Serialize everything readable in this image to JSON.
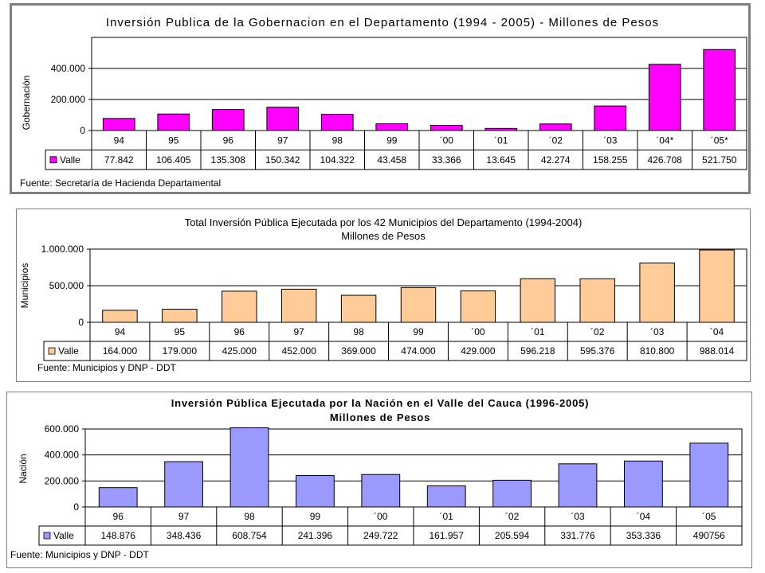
{
  "chart_data": [
    {
      "id": "gobernacion",
      "type": "bar",
      "title": "Inversión Publica de la Gobernacion en el Departamento (1994 - 2005) - Millones de Pesos",
      "subtitle": "",
      "ylabel": "Gobernación",
      "ylim": [
        0,
        600000
      ],
      "yticks": [
        "0",
        "200.000",
        "400.000"
      ],
      "ytick_values": [
        0,
        200000,
        400000
      ],
      "categories": [
        "94",
        "95",
        "96",
        "97",
        "98",
        "99",
        "´00",
        "´01",
        "´02",
        "´03",
        "´04*",
        "´05*"
      ],
      "series": [
        {
          "name": "Valle",
          "color": "#ff00ff",
          "values": [
            77842,
            106405,
            135308,
            150342,
            104322,
            43458,
            33366,
            13645,
            42274,
            158255,
            426708,
            521750
          ],
          "labels": [
            "77.842",
            "106.405",
            "135.308",
            "150.342",
            "104.322",
            "43.458",
            "33.366",
            "13.645",
            "42.274",
            "158.255",
            "426.708",
            "521.750"
          ]
        }
      ],
      "grid": true,
      "source": "Fuente: Secretaría de Hacienda Departamental"
    },
    {
      "id": "municipios",
      "type": "bar",
      "title": "Total Inversión Pública Ejecutada por los 42 Municipios del Departamento  (1994-2004)",
      "subtitle": "Millones de Pesos",
      "ylabel": "Municipios",
      "ylim": [
        0,
        1000000
      ],
      "yticks": [
        "0",
        "500.000",
        "1.000.000"
      ],
      "ytick_values": [
        0,
        500000,
        1000000
      ],
      "categories": [
        "94",
        "95",
        "96",
        "97",
        "98",
        "99",
        "´00",
        "´01",
        "´02",
        "´03",
        "´04"
      ],
      "series": [
        {
          "name": "Valle",
          "color": "#ffcc99",
          "values": [
            164000,
            179000,
            425000,
            452000,
            369000,
            474000,
            429000,
            596218,
            595376,
            810800,
            988014
          ],
          "labels": [
            "164.000",
            "179.000",
            "425.000",
            "452.000",
            "369.000",
            "474.000",
            "429.000",
            "596.218",
            "595.376",
            "810.800",
            "988.014"
          ]
        }
      ],
      "grid": true,
      "source": "Fuente: Municipios y DNP - DDT"
    },
    {
      "id": "nacion",
      "type": "bar",
      "title": "Inversión Pública Ejecutada por la Nación en el Valle del Cauca (1996-2005)",
      "subtitle": "Millones de Pesos",
      "ylabel": "Nación",
      "ylim": [
        0,
        600000
      ],
      "yticks": [
        "0",
        "200.000",
        "400.000",
        "600.000"
      ],
      "ytick_values": [
        0,
        200000,
        400000,
        600000
      ],
      "categories": [
        "96",
        "97",
        "98",
        "99",
        "´00",
        "´01",
        "´02",
        "´03",
        "´04",
        "´05"
      ],
      "series": [
        {
          "name": "Valle",
          "color": "#9999ff",
          "values": [
            148876,
            348436,
            608754,
            241396,
            249722,
            161957,
            205594,
            331776,
            353336,
            490756
          ],
          "labels": [
            "148.876",
            "348.436",
            "608.754",
            "241.396",
            "249.722",
            "161.957",
            "205.594",
            "331.776",
            "353.336",
            "490756"
          ]
        }
      ],
      "grid": true,
      "source": "Fuente: Municipios y DNP - DDT"
    }
  ]
}
